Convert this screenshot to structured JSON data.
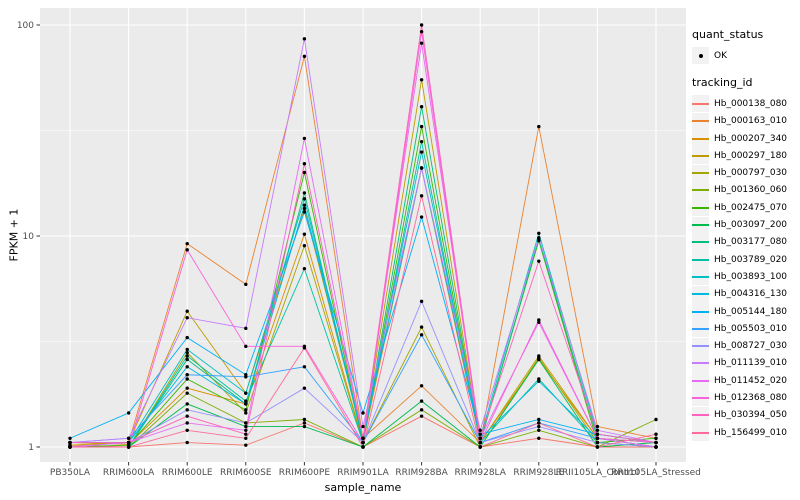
{
  "colors": {
    "panel_bg": "#EBEBEB",
    "grid": "#FFFFFF",
    "tick_text": "#4D4D4D",
    "tick_mark": "#333333",
    "point": "#000000",
    "legend_key_bg": "#F2F2F2"
  },
  "chart_data": {
    "type": "line",
    "title": "",
    "xlabel": "sample_name",
    "ylabel": "FPKM + 1",
    "y_scale": "log10",
    "y_ticks": [
      1,
      10,
      100
    ],
    "y_tick_labels": [
      "1",
      "10",
      "100"
    ],
    "y_minor_ticks": [
      3.1623,
      31.623
    ],
    "ylim": [
      0.85,
      120
    ],
    "grid": true,
    "legend_position": "right",
    "categories": [
      "PB350LA",
      "RRIM600LA",
      "RRIM600LE",
      "RRIM600SE",
      "RRIM600PE",
      "RRIM901LA",
      "RRIM928BA",
      "RRIM928LA",
      "RRIM928LE",
      "RRII105LA_Control",
      "RRII105LA_Stressed"
    ],
    "legend": {
      "quant_status_title": "quant_status",
      "quant_status_items": [
        "OK"
      ],
      "tracking_id_title": "tracking_id"
    },
    "series": [
      {
        "name": "Hb_000138_080",
        "color": "#F8766D",
        "values": [
          1.02,
          1.0,
          1.05,
          1.02,
          1.3,
          1.0,
          1.4,
          1.0,
          1.1,
          1.0,
          1.0
        ]
      },
      {
        "name": "Hb_000163_010",
        "color": "#EA8331",
        "values": [
          1.05,
          1.05,
          9.2,
          5.9,
          71,
          1.1,
          1.95,
          1.05,
          33,
          1.25,
          1.1
        ]
      },
      {
        "name": "Hb_000207_340",
        "color": "#D89000",
        "values": [
          1.05,
          1.03,
          1.9,
          1.6,
          10.2,
          1.05,
          21,
          1.05,
          2.6,
          1.1,
          1.05
        ]
      },
      {
        "name": "Hb_000297_180",
        "color": "#C09B00",
        "values": [
          1.02,
          1.05,
          4.4,
          1.8,
          13.5,
          1.1,
          55,
          1.05,
          2.7,
          1.1,
          1.05
        ]
      },
      {
        "name": "Hb_000797_030",
        "color": "#A3A500",
        "values": [
          1.0,
          1.0,
          2.8,
          1.45,
          9.0,
          1.05,
          3.7,
          1.0,
          2.65,
          1.05,
          1.0
        ]
      },
      {
        "name": "Hb_001360_060",
        "color": "#7CAE00",
        "values": [
          1.0,
          1.0,
          1.8,
          1.3,
          1.35,
          1.0,
          1.5,
          1.0,
          1.2,
          1.0,
          1.35
        ]
      },
      {
        "name": "Hb_002475_070",
        "color": "#39B600",
        "values": [
          1.0,
          1.02,
          2.1,
          1.5,
          20,
          1.05,
          33,
          1.05,
          9.5,
          1.05,
          1.1
        ]
      },
      {
        "name": "Hb_003097_200",
        "color": "#00BB4E",
        "values": [
          1.0,
          1.0,
          1.6,
          1.25,
          1.25,
          1.0,
          1.65,
          1.0,
          2.6,
          1.0,
          1.05
        ]
      },
      {
        "name": "Hb_003177_080",
        "color": "#00BF7D",
        "values": [
          1.0,
          1.0,
          2.6,
          1.6,
          16,
          1.05,
          41,
          1.05,
          9.7,
          1.1,
          1.0
        ]
      },
      {
        "name": "Hb_003789_020",
        "color": "#00C1A3",
        "values": [
          1.0,
          1.0,
          2.7,
          1.65,
          7.0,
          1.05,
          28,
          1.05,
          2.1,
          1.05,
          1.0
        ]
      },
      {
        "name": "Hb_003893_100",
        "color": "#00BFC4",
        "values": [
          1.05,
          1.05,
          2.9,
          1.8,
          15,
          1.1,
          25,
          1.1,
          10.3,
          1.15,
          1.05
        ]
      },
      {
        "name": "Hb_004316_130",
        "color": "#00BAE0",
        "values": [
          1.05,
          1.05,
          2.4,
          1.6,
          14,
          1.1,
          21,
          1.1,
          2.05,
          1.1,
          1.0
        ]
      },
      {
        "name": "Hb_005144_180",
        "color": "#00B0F6",
        "values": [
          1.1,
          1.45,
          3.3,
          2.2,
          13,
          1.45,
          12.3,
          1.15,
          1.35,
          1.15,
          1.05
        ]
      },
      {
        "name": "Hb_005503_010",
        "color": "#35A2FF",
        "values": [
          1.05,
          1.1,
          2.2,
          2.15,
          2.4,
          1.05,
          3.4,
          1.05,
          1.3,
          1.1,
          1.0
        ]
      },
      {
        "name": "Hb_008727_030",
        "color": "#9590FF",
        "values": [
          1.0,
          1.05,
          1.5,
          1.3,
          1.9,
          1.05,
          4.9,
          1.05,
          1.25,
          1.05,
          1.0
        ]
      },
      {
        "name": "Hb_011139_010",
        "color": "#C77CFF",
        "values": [
          1.05,
          1.1,
          4.1,
          3.65,
          86,
          1.25,
          21,
          1.2,
          9.8,
          1.2,
          1.05
        ]
      },
      {
        "name": "Hb_011452_020",
        "color": "#E76BF3",
        "values": [
          1.0,
          1.05,
          1.3,
          1.2,
          29,
          1.1,
          82,
          1.1,
          3.9,
          1.1,
          1.05
        ]
      },
      {
        "name": "Hb_012368_080",
        "color": "#FA62DB",
        "values": [
          1.0,
          1.0,
          8.6,
          3.0,
          3.0,
          1.05,
          93,
          1.05,
          4.0,
          1.1,
          1.0
        ]
      },
      {
        "name": "Hb_030394_050",
        "color": "#FF62BC",
        "values": [
          1.05,
          1.05,
          1.4,
          1.15,
          22,
          1.1,
          100,
          1.1,
          7.6,
          1.15,
          1.05
        ]
      },
      {
        "name": "Hb_156499_010",
        "color": "#FF6A98",
        "values": [
          1.0,
          1.0,
          1.2,
          1.1,
          2.95,
          1.0,
          15.5,
          1.0,
          1.3,
          1.0,
          1.15
        ]
      }
    ]
  }
}
